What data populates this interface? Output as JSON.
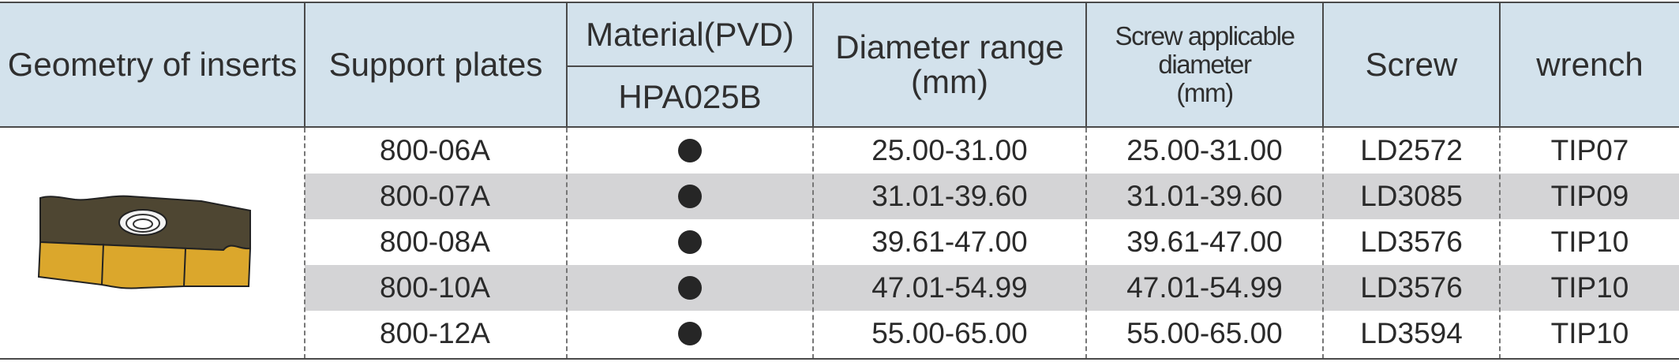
{
  "headers": {
    "geometry": "Geometry of inserts",
    "support_plates": "Support plates",
    "material": "Material(PVD)",
    "grade": "HPA025B",
    "diameter_range": "Diameter range",
    "diameter_unit": "(mm)",
    "screw_diameter": "Screw applicable diameter",
    "screw_diameter_unit": "(mm)",
    "screw": "Screw",
    "wrench": "wrench"
  },
  "rows": [
    {
      "plate": "800-06A",
      "diameter": "25.00-31.00",
      "screw_diameter": "25.00-31.00",
      "screw": "LD2572",
      "wrench": "TIP07",
      "available": true
    },
    {
      "plate": "800-07A",
      "diameter": "31.01-39.60",
      "screw_diameter": "31.01-39.60",
      "screw": "LD3085",
      "wrench": "TIP09",
      "available": true
    },
    {
      "plate": "800-08A",
      "diameter": "39.61-47.00",
      "screw_diameter": "39.61-47.00",
      "screw": "LD3576",
      "wrench": "TIP10",
      "available": true
    },
    {
      "plate": "800-10A",
      "diameter": "47.01-54.99",
      "screw_diameter": "47.01-54.99",
      "screw": "LD3576",
      "wrench": "TIP10",
      "available": true
    },
    {
      "plate": "800-12A",
      "diameter": "55.00-65.00",
      "screw_diameter": "55.00-65.00",
      "screw": "LD3594",
      "wrench": "TIP10",
      "available": true
    }
  ],
  "icons": {
    "insert": "insert-image",
    "availability": "filled-dot-icon"
  },
  "colors": {
    "header_bg": "#d3e2ec",
    "row_shade": "#d4d4d6",
    "insert_body": "#4e4632",
    "insert_edge": "#dba72c"
  }
}
